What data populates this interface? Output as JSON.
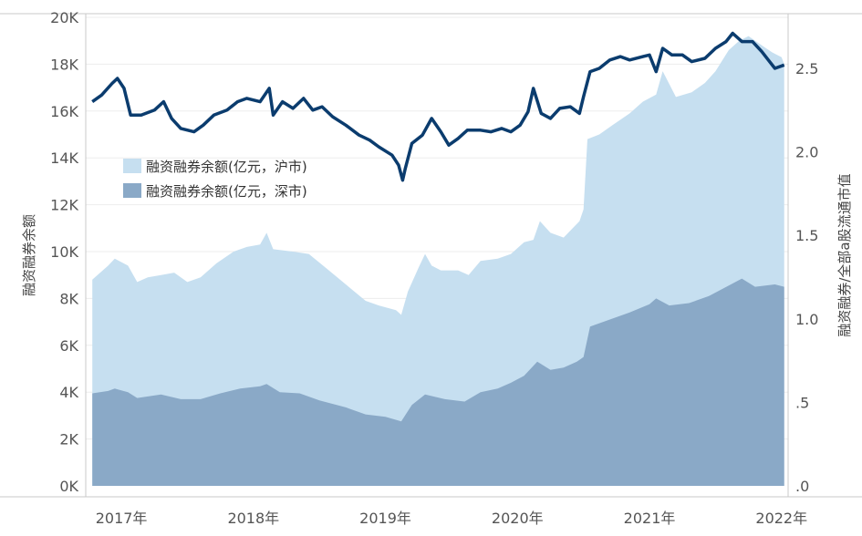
{
  "chart_data": {
    "type": "area",
    "x_labels": [
      "2017年",
      "2018年",
      "2019年",
      "2020年",
      "2021年",
      "2022年"
    ],
    "y_left": {
      "label": "融资融券余额",
      "ticks": [
        "0K",
        "2K",
        "4K",
        "6K",
        "8K",
        "10K",
        "12K",
        "14K",
        "16K",
        "18K",
        "20K"
      ],
      "range": [
        0,
        20000
      ]
    },
    "y_right": {
      "label": "融资融券/全部a股流通市值",
      "ticks": [
        ".0",
        ".5",
        "1.0",
        "1.5",
        "2.0",
        "2.5"
      ],
      "range": [
        0,
        2.8
      ]
    },
    "x_range": [
      2016.73,
      2022.05
    ],
    "grid": true,
    "legend_position": "left-middle",
    "series": [
      {
        "name": "融资融券余额(亿元，沪市)",
        "type": "stacked-area",
        "color": "#c6dff0",
        "points": [
          [
            2016.78,
            8800
          ],
          [
            2016.9,
            9400
          ],
          [
            2016.95,
            9700
          ],
          [
            2017.05,
            9400
          ],
          [
            2017.12,
            8700
          ],
          [
            2017.2,
            8900
          ],
          [
            2017.3,
            9000
          ],
          [
            2017.4,
            9100
          ],
          [
            2017.5,
            8700
          ],
          [
            2017.6,
            8900
          ],
          [
            2017.72,
            9500
          ],
          [
            2017.85,
            10000
          ],
          [
            2017.95,
            10200
          ],
          [
            2018.05,
            10300
          ],
          [
            2018.1,
            10800
          ],
          [
            2018.15,
            10100
          ],
          [
            2018.3,
            10000
          ],
          [
            2018.42,
            9900
          ],
          [
            2018.55,
            9300
          ],
          [
            2018.7,
            8600
          ],
          [
            2018.85,
            7900
          ],
          [
            2018.95,
            7700
          ],
          [
            2019.08,
            7500
          ],
          [
            2019.12,
            7300
          ],
          [
            2019.17,
            8300
          ],
          [
            2019.25,
            9300
          ],
          [
            2019.3,
            9900
          ],
          [
            2019.35,
            9400
          ],
          [
            2019.42,
            9200
          ],
          [
            2019.55,
            9200
          ],
          [
            2019.63,
            9000
          ],
          [
            2019.72,
            9600
          ],
          [
            2019.85,
            9700
          ],
          [
            2019.95,
            9900
          ],
          [
            2020.05,
            10400
          ],
          [
            2020.12,
            10500
          ],
          [
            2020.17,
            11300
          ],
          [
            2020.25,
            10800
          ],
          [
            2020.35,
            10600
          ],
          [
            2020.47,
            11300
          ],
          [
            2020.5,
            11800
          ],
          [
            2020.53,
            14800
          ],
          [
            2020.62,
            15000
          ],
          [
            2020.72,
            15400
          ],
          [
            2020.85,
            15900
          ],
          [
            2020.95,
            16400
          ],
          [
            2021.05,
            16700
          ],
          [
            2021.1,
            17700
          ],
          [
            2021.2,
            16600
          ],
          [
            2021.32,
            16800
          ],
          [
            2021.42,
            17200
          ],
          [
            2021.5,
            17700
          ],
          [
            2021.6,
            18600
          ],
          [
            2021.68,
            19000
          ],
          [
            2021.75,
            19200
          ],
          [
            2021.85,
            18800
          ],
          [
            2021.93,
            18500
          ],
          [
            2022.0,
            18300
          ],
          [
            2022.02,
            18000
          ]
        ]
      },
      {
        "name": "融资融券余额(亿元，深市)",
        "type": "area",
        "color": "#8aa9c7",
        "points": [
          [
            2016.78,
            3950
          ],
          [
            2016.9,
            4050
          ],
          [
            2016.95,
            4150
          ],
          [
            2017.05,
            4000
          ],
          [
            2017.12,
            3750
          ],
          [
            2017.3,
            3900
          ],
          [
            2017.45,
            3700
          ],
          [
            2017.6,
            3700
          ],
          [
            2017.75,
            3950
          ],
          [
            2017.9,
            4150
          ],
          [
            2018.05,
            4250
          ],
          [
            2018.1,
            4350
          ],
          [
            2018.2,
            4000
          ],
          [
            2018.35,
            3950
          ],
          [
            2018.5,
            3650
          ],
          [
            2018.7,
            3350
          ],
          [
            2018.85,
            3050
          ],
          [
            2019.0,
            2950
          ],
          [
            2019.12,
            2750
          ],
          [
            2019.2,
            3450
          ],
          [
            2019.3,
            3900
          ],
          [
            2019.45,
            3700
          ],
          [
            2019.6,
            3600
          ],
          [
            2019.72,
            4000
          ],
          [
            2019.85,
            4150
          ],
          [
            2019.95,
            4400
          ],
          [
            2020.05,
            4700
          ],
          [
            2020.15,
            5300
          ],
          [
            2020.25,
            4950
          ],
          [
            2020.35,
            5050
          ],
          [
            2020.45,
            5300
          ],
          [
            2020.5,
            5500
          ],
          [
            2020.55,
            6800
          ],
          [
            2020.7,
            7100
          ],
          [
            2020.85,
            7400
          ],
          [
            2021.0,
            7750
          ],
          [
            2021.05,
            8000
          ],
          [
            2021.15,
            7700
          ],
          [
            2021.3,
            7800
          ],
          [
            2021.45,
            8100
          ],
          [
            2021.55,
            8400
          ],
          [
            2021.7,
            8850
          ],
          [
            2021.8,
            8500
          ],
          [
            2021.95,
            8600
          ],
          [
            2022.02,
            8500
          ]
        ]
      },
      {
        "name": "融资融券/全部a股流通市值",
        "type": "line",
        "axis": "right",
        "color": "#0b3c6e",
        "points": [
          [
            2016.78,
            2.3
          ],
          [
            2016.85,
            2.34
          ],
          [
            2016.93,
            2.41
          ],
          [
            2016.97,
            2.44
          ],
          [
            2017.02,
            2.38
          ],
          [
            2017.07,
            2.22
          ],
          [
            2017.15,
            2.22
          ],
          [
            2017.25,
            2.25
          ],
          [
            2017.32,
            2.3
          ],
          [
            2017.38,
            2.2
          ],
          [
            2017.45,
            2.14
          ],
          [
            2017.55,
            2.12
          ],
          [
            2017.62,
            2.16
          ],
          [
            2017.7,
            2.22
          ],
          [
            2017.8,
            2.25
          ],
          [
            2017.88,
            2.3
          ],
          [
            2017.95,
            2.32
          ],
          [
            2018.05,
            2.3
          ],
          [
            2018.12,
            2.38
          ],
          [
            2018.15,
            2.22
          ],
          [
            2018.22,
            2.3
          ],
          [
            2018.3,
            2.26
          ],
          [
            2018.38,
            2.32
          ],
          [
            2018.45,
            2.25
          ],
          [
            2018.52,
            2.27
          ],
          [
            2018.6,
            2.21
          ],
          [
            2018.7,
            2.16
          ],
          [
            2018.8,
            2.1
          ],
          [
            2018.88,
            2.07
          ],
          [
            2018.95,
            2.03
          ],
          [
            2019.05,
            1.98
          ],
          [
            2019.1,
            1.92
          ],
          [
            2019.13,
            1.83
          ],
          [
            2019.15,
            1.9
          ],
          [
            2019.2,
            2.05
          ],
          [
            2019.28,
            2.1
          ],
          [
            2019.35,
            2.2
          ],
          [
            2019.42,
            2.12
          ],
          [
            2019.48,
            2.04
          ],
          [
            2019.55,
            2.08
          ],
          [
            2019.62,
            2.13
          ],
          [
            2019.72,
            2.13
          ],
          [
            2019.8,
            2.12
          ],
          [
            2019.88,
            2.14
          ],
          [
            2019.95,
            2.12
          ],
          [
            2020.02,
            2.16
          ],
          [
            2020.08,
            2.24
          ],
          [
            2020.12,
            2.38
          ],
          [
            2020.18,
            2.23
          ],
          [
            2020.25,
            2.2
          ],
          [
            2020.32,
            2.26
          ],
          [
            2020.4,
            2.27
          ],
          [
            2020.47,
            2.23
          ],
          [
            2020.5,
            2.33
          ],
          [
            2020.55,
            2.48
          ],
          [
            2020.62,
            2.5
          ],
          [
            2020.7,
            2.55
          ],
          [
            2020.78,
            2.57
          ],
          [
            2020.85,
            2.55
          ],
          [
            2020.95,
            2.57
          ],
          [
            2021.0,
            2.58
          ],
          [
            2021.05,
            2.48
          ],
          [
            2021.1,
            2.62
          ],
          [
            2021.17,
            2.58
          ],
          [
            2021.25,
            2.58
          ],
          [
            2021.32,
            2.54
          ],
          [
            2021.42,
            2.56
          ],
          [
            2021.5,
            2.62
          ],
          [
            2021.58,
            2.66
          ],
          [
            2021.63,
            2.71
          ],
          [
            2021.7,
            2.66
          ],
          [
            2021.78,
            2.66
          ],
          [
            2021.85,
            2.6
          ],
          [
            2021.9,
            2.55
          ],
          [
            2021.95,
            2.5
          ],
          [
            2022.02,
            2.52
          ]
        ]
      }
    ]
  }
}
